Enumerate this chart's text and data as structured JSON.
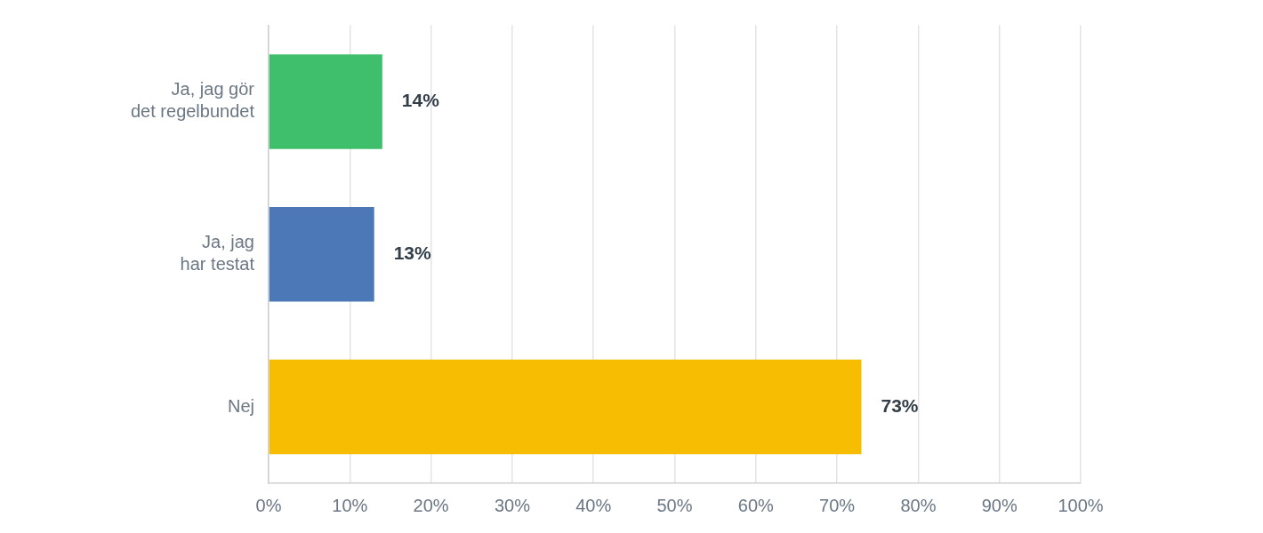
{
  "chart_data": {
    "type": "bar",
    "orientation": "horizontal",
    "categories": [
      "Ja, jag gör det regelbundet",
      "Ja, jag har testat",
      "Nej"
    ],
    "values": [
      14,
      13,
      73
    ],
    "colors": [
      "#3fbf6b",
      "#4c78b8",
      "#f6bd02"
    ],
    "value_labels": [
      "14%",
      "13%",
      "73%"
    ],
    "xlim": [
      0,
      100
    ],
    "xticks": [
      {
        "value": 0,
        "label": "0%"
      },
      {
        "value": 10,
        "label": "10%"
      },
      {
        "value": 20,
        "label": "20%"
      },
      {
        "value": 30,
        "label": "30%"
      },
      {
        "value": 40,
        "label": "40%"
      },
      {
        "value": 50,
        "label": "50%"
      },
      {
        "value": 60,
        "label": "60%"
      },
      {
        "value": 70,
        "label": "70%"
      },
      {
        "value": 80,
        "label": "80%"
      },
      {
        "value": 90,
        "label": "90%"
      },
      {
        "value": 100,
        "label": "100%"
      }
    ],
    "grid": "x",
    "legend": false
  }
}
